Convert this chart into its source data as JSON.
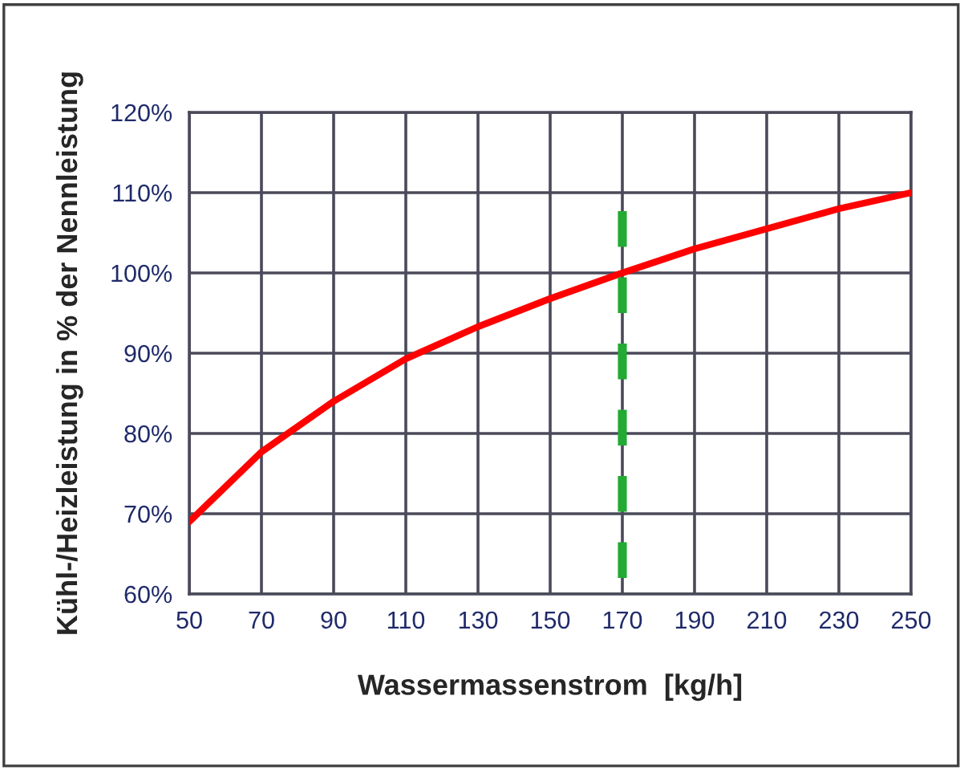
{
  "chart_data": {
    "type": "line",
    "xlabel": "Wassermassenstrom  [kg/h]",
    "ylabel": "Kühl-/Heizleistung in % der Nennleistung",
    "x": [
      50,
      70,
      90,
      110,
      130,
      150,
      170,
      190,
      210,
      230,
      250
    ],
    "series": [
      {
        "color": "#ff0000",
        "values": [
          69,
          77.7,
          84,
          89.3,
          93.3,
          96.8,
          100,
          103,
          105.5,
          108,
          110
        ],
        "line_style": "solid"
      },
      {
        "type": "line",
        "color": "#22aa33",
        "x": [
          170,
          170
        ],
        "values": [
          107.7,
          62
        ],
        "line_style": "dashed"
      }
    ],
    "xlim": [
      50,
      250
    ],
    "xticks": [
      50,
      70,
      90,
      110,
      130,
      150,
      170,
      190,
      210,
      230,
      250
    ],
    "ylim": [
      60,
      120
    ],
    "yticks": [
      {
        "value": 60,
        "label": "60%"
      },
      {
        "value": 70,
        "label": "70%"
      },
      {
        "value": 80,
        "label": "80%"
      },
      {
        "value": 90,
        "label": "90%"
      },
      {
        "value": 100,
        "label": "100%"
      },
      {
        "value": 110,
        "label": "110%"
      },
      {
        "value": 120,
        "label": "120%"
      }
    ],
    "grid": true,
    "marker": "none"
  }
}
